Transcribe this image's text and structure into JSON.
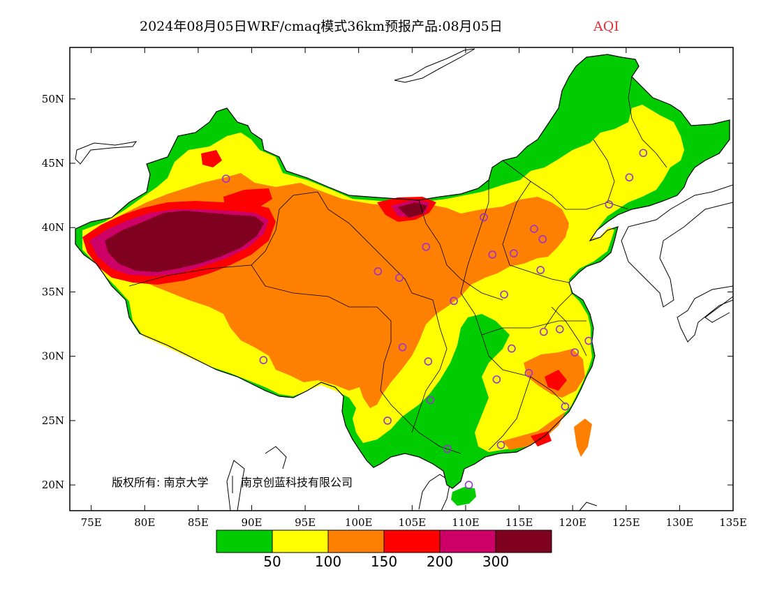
{
  "title": {
    "main": "2024年08月05日WRF/cmaq模式36km预报产品:08月05日",
    "variable": "AQI"
  },
  "axes": {
    "lon_min": 73,
    "lon_max": 135,
    "lat_min": 18,
    "lat_max": 54,
    "x_ticks": [
      "75E",
      "80E",
      "85E",
      "90E",
      "95E",
      "100E",
      "105E",
      "110E",
      "115E",
      "120E",
      "125E",
      "130E",
      "135E"
    ],
    "x_tick_values": [
      75,
      80,
      85,
      90,
      95,
      100,
      105,
      110,
      115,
      120,
      125,
      130,
      135
    ],
    "y_ticks": [
      "20N",
      "25N",
      "30N",
      "35N",
      "40N",
      "45N",
      "50N"
    ],
    "y_tick_values": [
      20,
      25,
      30,
      35,
      40,
      45,
      50
    ]
  },
  "legend": {
    "colors": [
      "#00cc00",
      "#ffff00",
      "#ff8000",
      "#ff0000",
      "#cc0066",
      "#800020"
    ],
    "labels": [
      "50",
      "100",
      "150",
      "200",
      "300"
    ]
  },
  "copyright": {
    "left": "版权所有: 南京大学",
    "right": "南京创蓝科技有限公司"
  },
  "station_color": "#9933cc",
  "stations": [
    [
      87.6,
      43.8
    ],
    [
      126.6,
      45.8
    ],
    [
      125.3,
      43.9
    ],
    [
      123.4,
      41.8
    ],
    [
      111.7,
      40.8
    ],
    [
      116.4,
      39.9
    ],
    [
      117.2,
      39.1
    ],
    [
      106.3,
      38.5
    ],
    [
      112.5,
      37.9
    ],
    [
      114.5,
      38.0
    ],
    [
      101.8,
      36.6
    ],
    [
      103.8,
      36.1
    ],
    [
      117.0,
      36.7
    ],
    [
      108.9,
      34.3
    ],
    [
      113.6,
      34.8
    ],
    [
      91.1,
      29.7
    ],
    [
      104.1,
      30.7
    ],
    [
      106.5,
      29.6
    ],
    [
      114.3,
      30.6
    ],
    [
      117.3,
      31.9
    ],
    [
      118.8,
      32.1
    ],
    [
      121.5,
      31.2
    ],
    [
      120.2,
      30.3
    ],
    [
      112.9,
      28.2
    ],
    [
      115.9,
      28.7
    ],
    [
      119.3,
      26.1
    ],
    [
      106.7,
      26.6
    ],
    [
      102.7,
      25.0
    ],
    [
      108.3,
      22.8
    ],
    [
      113.3,
      23.1
    ],
    [
      110.3,
      20.0
    ]
  ]
}
